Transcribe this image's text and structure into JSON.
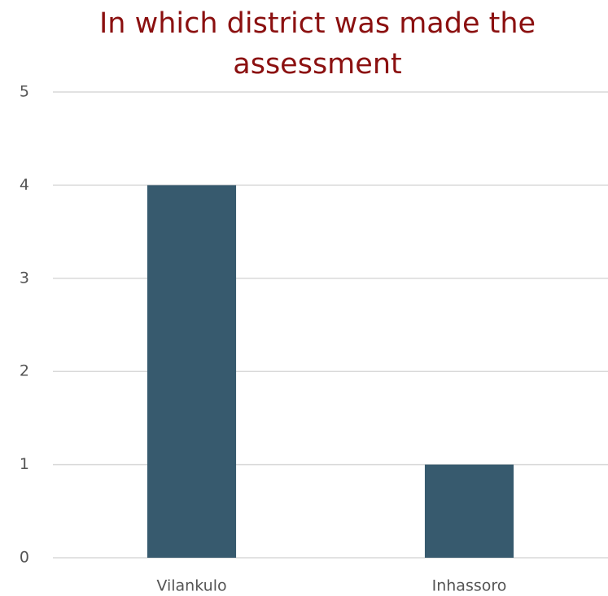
{
  "chart_data": {
    "type": "bar",
    "title": "In which district was made the assessment",
    "categories": [
      "Vilankulo",
      "Inhassoro"
    ],
    "values": [
      4,
      1
    ],
    "color": "#375a6e",
    "ylim": [
      0,
      5
    ],
    "yticks": [
      0,
      1,
      2,
      3,
      4,
      5
    ],
    "grid": true
  }
}
